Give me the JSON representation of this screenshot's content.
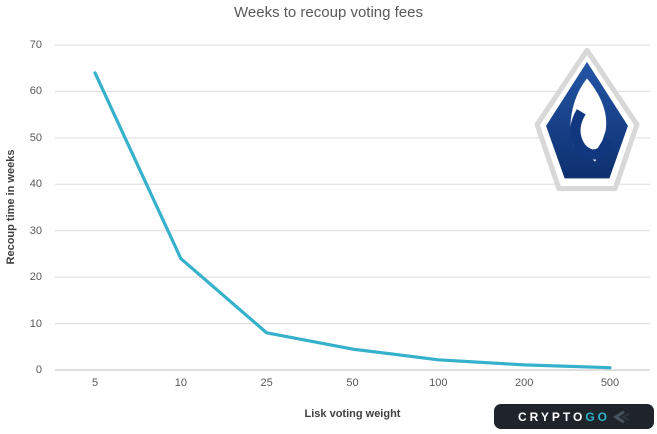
{
  "page": {
    "background_color": "#ffffff"
  },
  "chart_data": {
    "type": "line",
    "title": "Weeks to recoup voting fees",
    "xlabel": "Lisk voting weight",
    "ylabel": "Recoup time in weeks",
    "categories": [
      "5",
      "10",
      "25",
      "50",
      "100",
      "200",
      "500"
    ],
    "values": [
      64,
      24,
      8,
      4.5,
      2.2,
      1.1,
      0.5
    ],
    "ylim": [
      0,
      70
    ],
    "yticks": [
      0,
      10,
      20,
      30,
      40,
      50,
      60,
      70
    ],
    "grid": true,
    "legend": "none",
    "line_color": "#35b1cb",
    "gridline_color": "#dcdcdc",
    "axis_line_color": "#bfbfbf",
    "tick_text_color": "#595959",
    "title_text_color": "#595959"
  },
  "lisk_logo": {
    "name": "lisk-logo",
    "gradient_top_color": "#2456a6",
    "gradient_bottom_color": "#0d2f6e",
    "hook_color": "#11377f",
    "badge_fill": "#ffffff",
    "badge_border_color": "#d8d8d8"
  },
  "watermark": {
    "text_primary": "CRYPTO",
    "text_accent": "GO",
    "icon": "double-chevron-left-icon",
    "background_color": "#1f242a",
    "text_color": "#ffffff",
    "accent_color": "#2ab5c9",
    "chevron_color": "#46525e"
  }
}
